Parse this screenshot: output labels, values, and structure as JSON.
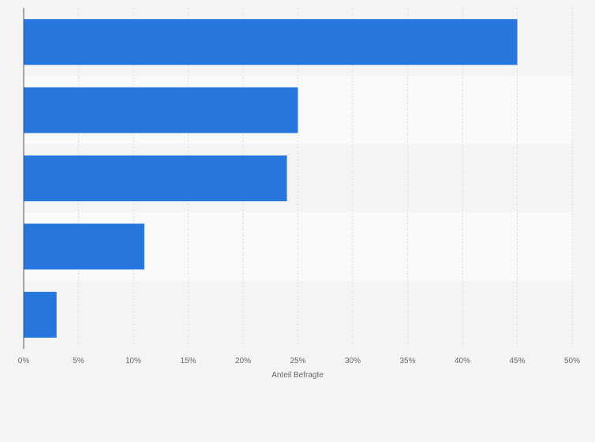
{
  "chart_data": {
    "type": "bar",
    "orientation": "horizontal",
    "categories": [
      "",
      "",
      "",
      "",
      ""
    ],
    "values": [
      45,
      25,
      24,
      11,
      3
    ],
    "xlabel": "Anteil Befragte",
    "ylabel": "",
    "xlim": [
      0,
      50
    ],
    "x_ticks": [
      0,
      5,
      10,
      15,
      20,
      25,
      30,
      35,
      40,
      45,
      50
    ],
    "x_tick_labels": [
      "0%",
      "5%",
      "10%",
      "15%",
      "20%",
      "25%",
      "30%",
      "35%",
      "40%",
      "45%",
      "50%"
    ],
    "grid": true,
    "bar_color": "#2776de",
    "band_colors": [
      "#f4f4f4",
      "#fafafa"
    ]
  }
}
